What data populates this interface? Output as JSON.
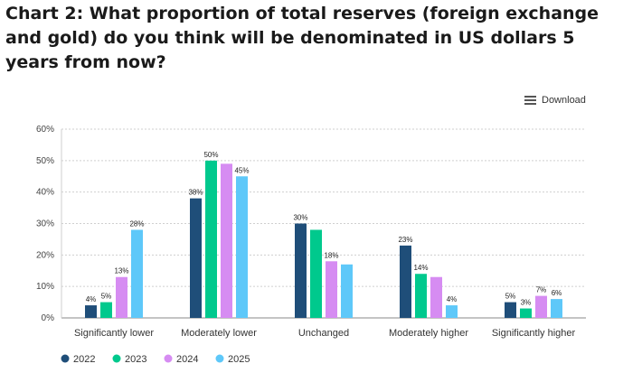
{
  "page": {
    "title": "Chart 2: What proportion of total reserves (foreign exchange and gold) do you think will be denominated in US dollars 5 years from now?",
    "download_label": "Download",
    "download_icon": "menu-icon"
  },
  "chart_data": {
    "type": "bar",
    "title": "Chart 2: What proportion of total reserves (foreign exchange and gold) do you think will be denominated in US dollars 5 years from now?",
    "categories": [
      "Significantly lower",
      "Moderately lower",
      "Unchanged",
      "Moderately higher",
      "Significantly higher"
    ],
    "series": [
      {
        "name": "2022",
        "color": "#1f4e79",
        "values": [
          4,
          38,
          30,
          23,
          5
        ],
        "labels": [
          "4%",
          "38%",
          "30%",
          "23%",
          "5%"
        ]
      },
      {
        "name": "2023",
        "color": "#00c98d",
        "values": [
          5,
          50,
          28,
          14,
          3
        ],
        "labels": [
          "5%",
          "50%",
          "",
          "14%",
          "3%"
        ]
      },
      {
        "name": "2024",
        "color": "#d68cf2",
        "values": [
          13,
          49,
          18,
          13,
          7
        ],
        "labels": [
          "13%",
          "",
          "18%",
          "",
          "7%"
        ]
      },
      {
        "name": "2025",
        "color": "#5ec8f9",
        "values": [
          28,
          45,
          17,
          4,
          6
        ],
        "labels": [
          "28%",
          "45%",
          "",
          "4%",
          "6%"
        ]
      }
    ],
    "ylim": [
      0,
      60
    ],
    "yticks": [
      0,
      10,
      20,
      30,
      40,
      50,
      60
    ],
    "ytick_labels": [
      "0%",
      "10%",
      "20%",
      "30%",
      "40%",
      "50%",
      "60%"
    ],
    "grid": true,
    "legend_position": "bottom-left"
  }
}
